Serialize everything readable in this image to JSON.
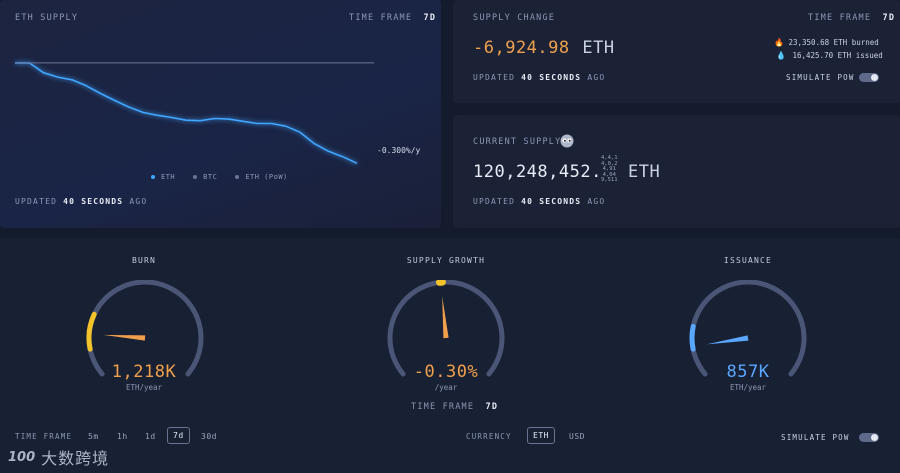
{
  "colors": {
    "eth": "#3fa6ff",
    "orange": "#f0a04c",
    "yellow": "#f3c32a",
    "blue": "#5aa7ff",
    "track": "#4b5575"
  },
  "supply_chart": {
    "title": "ETH SUPPLY",
    "timeframe_label": "TIME FRAME",
    "timeframe_value": "7d",
    "end_label": "-0.300%/y",
    "legend": [
      "ETH",
      "BTC",
      "ETH (PoW)"
    ],
    "updated_prefix": "UPDATED",
    "updated_value": "40 SECONDS",
    "updated_suffix": "AGO"
  },
  "chart_data": {
    "type": "line",
    "title": "ETH SUPPLY",
    "series": [
      {
        "name": "ETH",
        "values": [
          100,
          100,
          98.2,
          97.4,
          96.9,
          95.8,
          94.4,
          93.1,
          91.9,
          90.9,
          90.4,
          90.0,
          89.5,
          89.4,
          89.8,
          89.7,
          89.3,
          88.9,
          88.9,
          88.4,
          87.3,
          85.2,
          83.8,
          82.8,
          81.6
        ]
      },
      {
        "name": "Baseline",
        "values": [
          100,
          100,
          100,
          100,
          100,
          100,
          100,
          100,
          100,
          100,
          100,
          100,
          100,
          100,
          100,
          100,
          100,
          100,
          100,
          100,
          100,
          100,
          100,
          100,
          100
        ]
      }
    ],
    "ylim": [
      80,
      102
    ],
    "legend": [
      "ETH",
      "BTC",
      "ETH (PoW)"
    ]
  },
  "supply_change": {
    "title": "SUPPLY CHANGE",
    "timeframe_label": "TIME FRAME",
    "timeframe_value": "7d",
    "value": "-6,924.98",
    "unit": "ETH",
    "burned_icon": "fire-icon",
    "burned": "23,350.68 ETH burned",
    "issued_icon": "droplet-icon",
    "issued": "16,425.70 ETH issued",
    "updated_prefix": "UPDATED",
    "updated_value": "40 SECONDS",
    "updated_suffix": "AGO",
    "simulate_label": "SIMULATE PoW"
  },
  "current_supply": {
    "title": "CURRENT SUPPLY",
    "icon": "eyes-icon",
    "value": "120,248,452.",
    "decimals": [
      "4,4,1",
      "4,0,2",
      "4,91",
      "4,04",
      "9,511"
    ],
    "unit": "ETH",
    "updated_prefix": "UPDATED",
    "updated_value": "40 SECONDS",
    "updated_suffix": "AGO"
  },
  "gauges": {
    "burn": {
      "title": "BURN",
      "value": "1,218K",
      "unit": "ETH/year",
      "fill": 0.17
    },
    "growth": {
      "title": "SUPPLY GROWTH",
      "value": "-0.30%",
      "unit": "/year",
      "fill": 0.48
    },
    "issuance": {
      "title": "ISSUANCE",
      "value": "857K",
      "unit": "ETH/year",
      "fill": 0.12
    }
  },
  "bottom": {
    "center_timeframe_label": "TIME FRAME",
    "center_timeframe_value": "7d",
    "timeframe_label": "TIME FRAME",
    "timeframes": [
      "5m",
      "1h",
      "1d",
      "7d",
      "30d"
    ],
    "active_timeframe": "7d",
    "currency_label": "CURRENCY",
    "currencies": [
      "ETH",
      "USD"
    ],
    "active_currency": "ETH",
    "simulate_label": "SIMULATE PoW"
  },
  "watermark": {
    "logo": "100",
    "text": "大数跨境"
  }
}
